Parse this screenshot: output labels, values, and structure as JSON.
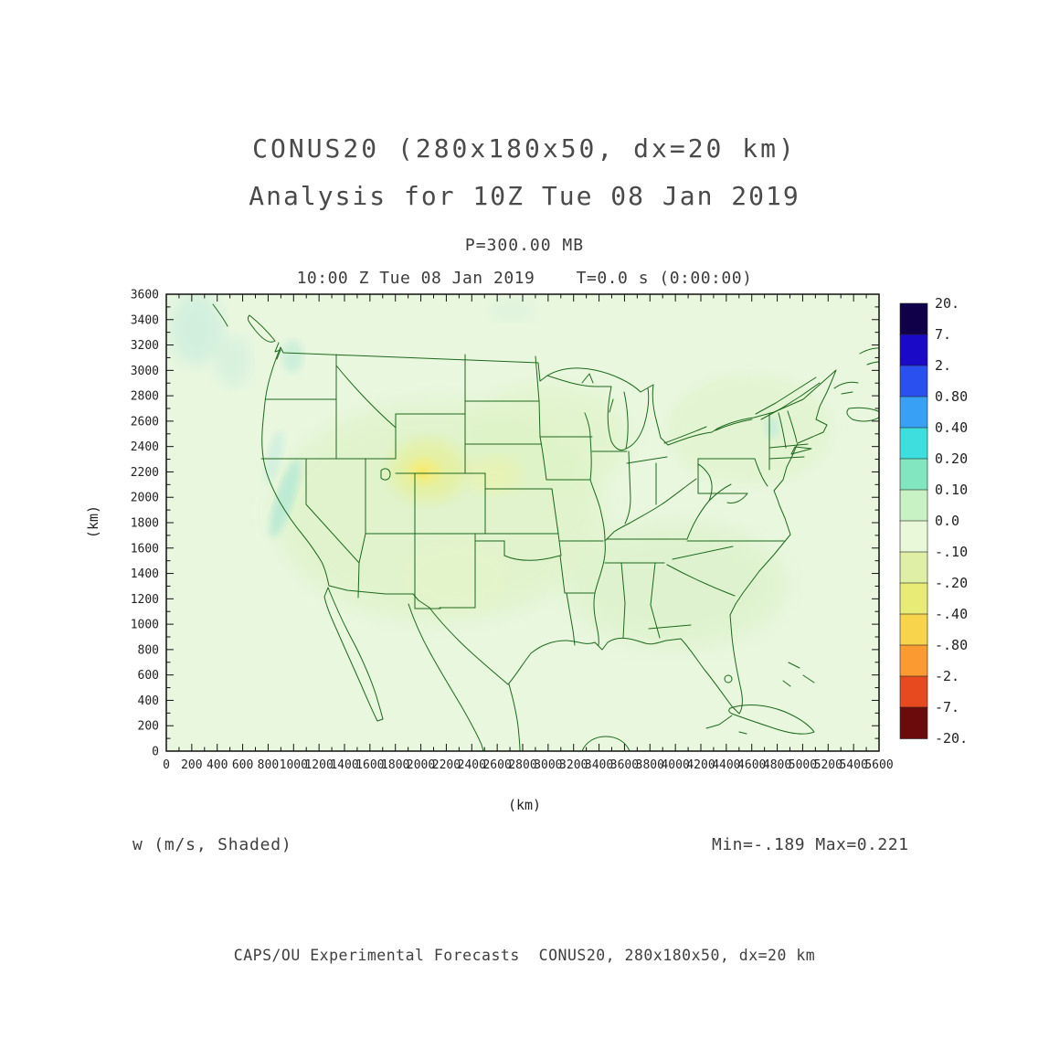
{
  "header": {
    "title_line1": "CONUS20 (280x180x50, dx=20 km)",
    "title_line2": "Analysis for 10Z Tue 08 Jan 2019",
    "level_label": "P=300.00 MB",
    "time_label": "10:00 Z Tue 08 Jan 2019    T=0.0 s (0:00:00)"
  },
  "footer": {
    "variable_label": "w (m/s, Shaded)",
    "minmax_label": "Min=-.189 Max=0.221",
    "credit_label": "CAPS/OU Experimental Forecasts  CONUS20, 280x180x50, dx=20 km"
  },
  "chart_data": {
    "type": "heatmap",
    "title": "CONUS20 (280x180x50, dx=20 km)",
    "subtitle": "Analysis for 10Z Tue 08 Jan 2019",
    "pressure_level": "P=300.00 MB",
    "valid_time": "10:00 Z Tue 08 Jan 2019",
    "forecast_time": "T=0.0 s (0:00:00)",
    "variable": "w (m/s, Shaded)",
    "units": "m/s",
    "min": -0.189,
    "max": 0.221,
    "xlabel": "(km)",
    "ylabel": "(km)",
    "xlim": [
      0,
      5600
    ],
    "ylim": [
      0,
      3600
    ],
    "grid": false,
    "legend_position": "right",
    "x_ticks": [
      0,
      200,
      400,
      600,
      800,
      1000,
      1200,
      1400,
      1600,
      1800,
      2000,
      2200,
      2400,
      2600,
      2800,
      3000,
      3200,
      3400,
      3600,
      3800,
      4000,
      4200,
      4400,
      4600,
      4800,
      5000,
      5200,
      5400,
      5600
    ],
    "y_ticks": [
      0,
      200,
      400,
      600,
      800,
      1000,
      1200,
      1400,
      1600,
      1800,
      2000,
      2200,
      2400,
      2600,
      2800,
      3000,
      3200,
      3400,
      3600
    ],
    "colorbar": {
      "tick_labels": [
        "20.",
        "7.",
        "2.",
        "0.80",
        "0.40",
        "0.20",
        "0.10",
        "0.0",
        "-.10",
        "-.20",
        "-.40",
        "-.80",
        "-2.",
        "-7.",
        "-20."
      ],
      "segment_colors": [
        "#10004a",
        "#1a0ac8",
        "#2b50f0",
        "#38a0f5",
        "#3cdede",
        "#82e6c0",
        "#c8f1c4",
        "#eaf8da",
        "#dff0a6",
        "#e8ec76",
        "#f8d44c",
        "#fa9a30",
        "#e84a20",
        "#6b0b0b"
      ]
    },
    "map_fill_base_color": "#e9f7df",
    "map_outline_color": "#1d671d"
  }
}
